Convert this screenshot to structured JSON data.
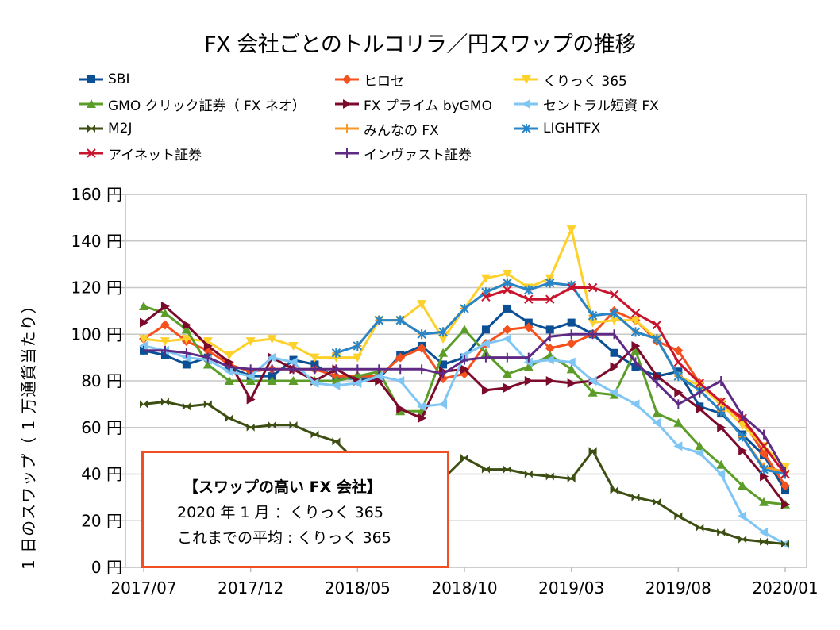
{
  "chart_data": {
    "type": "line",
    "title": "FX 会社ごとのトルコリラ／円スワップの推移",
    "xlabel": "",
    "ylabel": "1 日のスワップ（ 1 万通貨当たり）",
    "ylim": [
      0,
      160
    ],
    "yticks": [
      0,
      20,
      40,
      60,
      80,
      100,
      120,
      140,
      160
    ],
    "ytick_labels": [
      "0 円",
      "20 円",
      "40 円",
      "60 円",
      "80 円",
      "100 円",
      "120 円",
      "140 円",
      "160 円"
    ],
    "grid": true,
    "legend_position": "top",
    "x": [
      "2017/07",
      "2017/08",
      "2017/09",
      "2017/10",
      "2017/11",
      "2017/12",
      "2018/01",
      "2018/02",
      "2018/03",
      "2018/04",
      "2018/05",
      "2018/06",
      "2018/07",
      "2018/08",
      "2018/09",
      "2018/10",
      "2018/11",
      "2018/12",
      "2019/01",
      "2019/02",
      "2019/03",
      "2019/04",
      "2019/05",
      "2019/06",
      "2019/07",
      "2019/08",
      "2019/09",
      "2019/10",
      "2019/11",
      "2019/12",
      "2020/01"
    ],
    "xtick_labels": [
      "2017/07",
      "2017/12",
      "2018/05",
      "2018/10",
      "2019/03",
      "2019/08",
      "2020/01"
    ],
    "series": [
      {
        "name": "SBI",
        "color": "#0b4f94",
        "marker": "square",
        "values": [
          93,
          91,
          87,
          90,
          86,
          82,
          82,
          89,
          87,
          81,
          81,
          81,
          91,
          95,
          87,
          90,
          102,
          111,
          105,
          102,
          105,
          100,
          92,
          86,
          82,
          84,
          69,
          66,
          57,
          48,
          33
        ]
      },
      {
        "name": "ヒロセ",
        "color": "#f4511e",
        "marker": "diamond",
        "values": [
          98,
          104,
          97,
          93,
          87,
          84,
          85,
          85,
          85,
          82,
          82,
          82,
          90,
          94,
          81,
          83,
          96,
          102,
          103,
          94,
          96,
          100,
          110,
          106,
          97,
          93,
          79,
          71,
          63,
          49,
          35
        ]
      },
      {
        "name": "くりっく 365",
        "color": "#fdd12a",
        "marker": "triangle-down",
        "values": [
          98,
          97,
          98,
          97,
          91,
          97,
          98,
          95,
          90,
          90,
          90,
          106,
          106,
          113,
          98,
          111,
          124,
          126,
          120,
          124,
          145,
          105,
          106,
          106,
          98,
          82,
          78,
          70,
          61,
          52,
          43
        ]
      },
      {
        "name": "GMO クリック証券（ FX ネオ）",
        "color": "#5b9d28",
        "marker": "triangle-up",
        "values": [
          112,
          109,
          102,
          87,
          80,
          80,
          80,
          80,
          80,
          80,
          82,
          84,
          67,
          67,
          92,
          102,
          92,
          83,
          86,
          91,
          85,
          75,
          74,
          93,
          66,
          62,
          52,
          44,
          35,
          28,
          27
        ]
      },
      {
        "name": "FX プライム byGMO",
        "color": "#7c0a2b",
        "marker": "triangle-right",
        "values": [
          105,
          112,
          104,
          95,
          88,
          72,
          90,
          85,
          80,
          85,
          80,
          80,
          68,
          64,
          84,
          85,
          76,
          77,
          80,
          80,
          79,
          80,
          86,
          95,
          82,
          75,
          68,
          60,
          50,
          39,
          27
        ]
      },
      {
        "name": "セントラル短資 FX",
        "color": "#7fc6f5",
        "marker": "triangle-left",
        "values": [
          95,
          93,
          90,
          89,
          84,
          82,
          90,
          88,
          79,
          78,
          79,
          82,
          80,
          69,
          70,
          91,
          96,
          98,
          88,
          89,
          88,
          80,
          75,
          70,
          62,
          52,
          49,
          40,
          22,
          15,
          10
        ]
      },
      {
        "name": "M2J",
        "color": "#3d4e12",
        "marker": "bowtie",
        "values": [
          70,
          71,
          69,
          70,
          64,
          60,
          61,
          61,
          57,
          54,
          45,
          40,
          35,
          32,
          38,
          47,
          42,
          42,
          40,
          39,
          38,
          50,
          33,
          30,
          28,
          22,
          17,
          15,
          12,
          11,
          10
        ]
      },
      {
        "name": "みんなの FX",
        "color": "#f59a27",
        "marker": "plus",
        "values": [
          null,
          null,
          null,
          null,
          null,
          null,
          null,
          null,
          null,
          92,
          95,
          106,
          106,
          100,
          101,
          111,
          118,
          122,
          119,
          122,
          121,
          108,
          109,
          101,
          98,
          82,
          76,
          67,
          56,
          43,
          41
        ]
      },
      {
        "name": "LIGHTFX",
        "color": "#2785c8",
        "marker": "asterisk",
        "values": [
          null,
          null,
          null,
          null,
          null,
          null,
          null,
          null,
          null,
          92,
          95,
          106,
          106,
          100,
          101,
          111,
          118,
          122,
          119,
          122,
          121,
          108,
          109,
          101,
          98,
          82,
          76,
          67,
          56,
          42,
          40
        ]
      },
      {
        "name": "アイネット証券",
        "color": "#c8142c",
        "marker": "x",
        "values": [
          null,
          null,
          null,
          null,
          null,
          null,
          null,
          null,
          null,
          null,
          null,
          null,
          null,
          null,
          null,
          null,
          116,
          119,
          115,
          115,
          120,
          120,
          117,
          109,
          104,
          88,
          79,
          71,
          64,
          52,
          40
        ]
      },
      {
        "name": "インヴァスト証券",
        "color": "#5e2a84",
        "marker": "dash",
        "values": [
          93,
          93,
          92,
          90,
          86,
          85,
          85,
          85,
          85,
          85,
          85,
          85,
          85,
          85,
          83,
          89,
          90,
          90,
          90,
          99,
          100,
          100,
          100,
          88,
          79,
          70,
          75,
          80,
          65,
          57,
          41
        ]
      }
    ]
  },
  "legend": [
    {
      "label": "SBI"
    },
    {
      "label": "ヒロセ"
    },
    {
      "label": "くりっく 365"
    },
    {
      "label": "GMO クリック証券（ FX ネオ）"
    },
    {
      "label": "FX プライム byGMO"
    },
    {
      "label": "セントラル短資 FX"
    },
    {
      "label": "M2J"
    },
    {
      "label": "みんなの FX"
    },
    {
      "label": "LIGHTFX"
    },
    {
      "label": "アイネット証券"
    },
    {
      "label": "インヴァスト証券"
    }
  ],
  "callout": {
    "heading": "【スワップの高い FX 会社】",
    "line1": "2020 年 1 月 ：くりっく 365",
    "line2": "これまでの平均 : くりっく 365",
    "border_color": "#f04f23"
  }
}
